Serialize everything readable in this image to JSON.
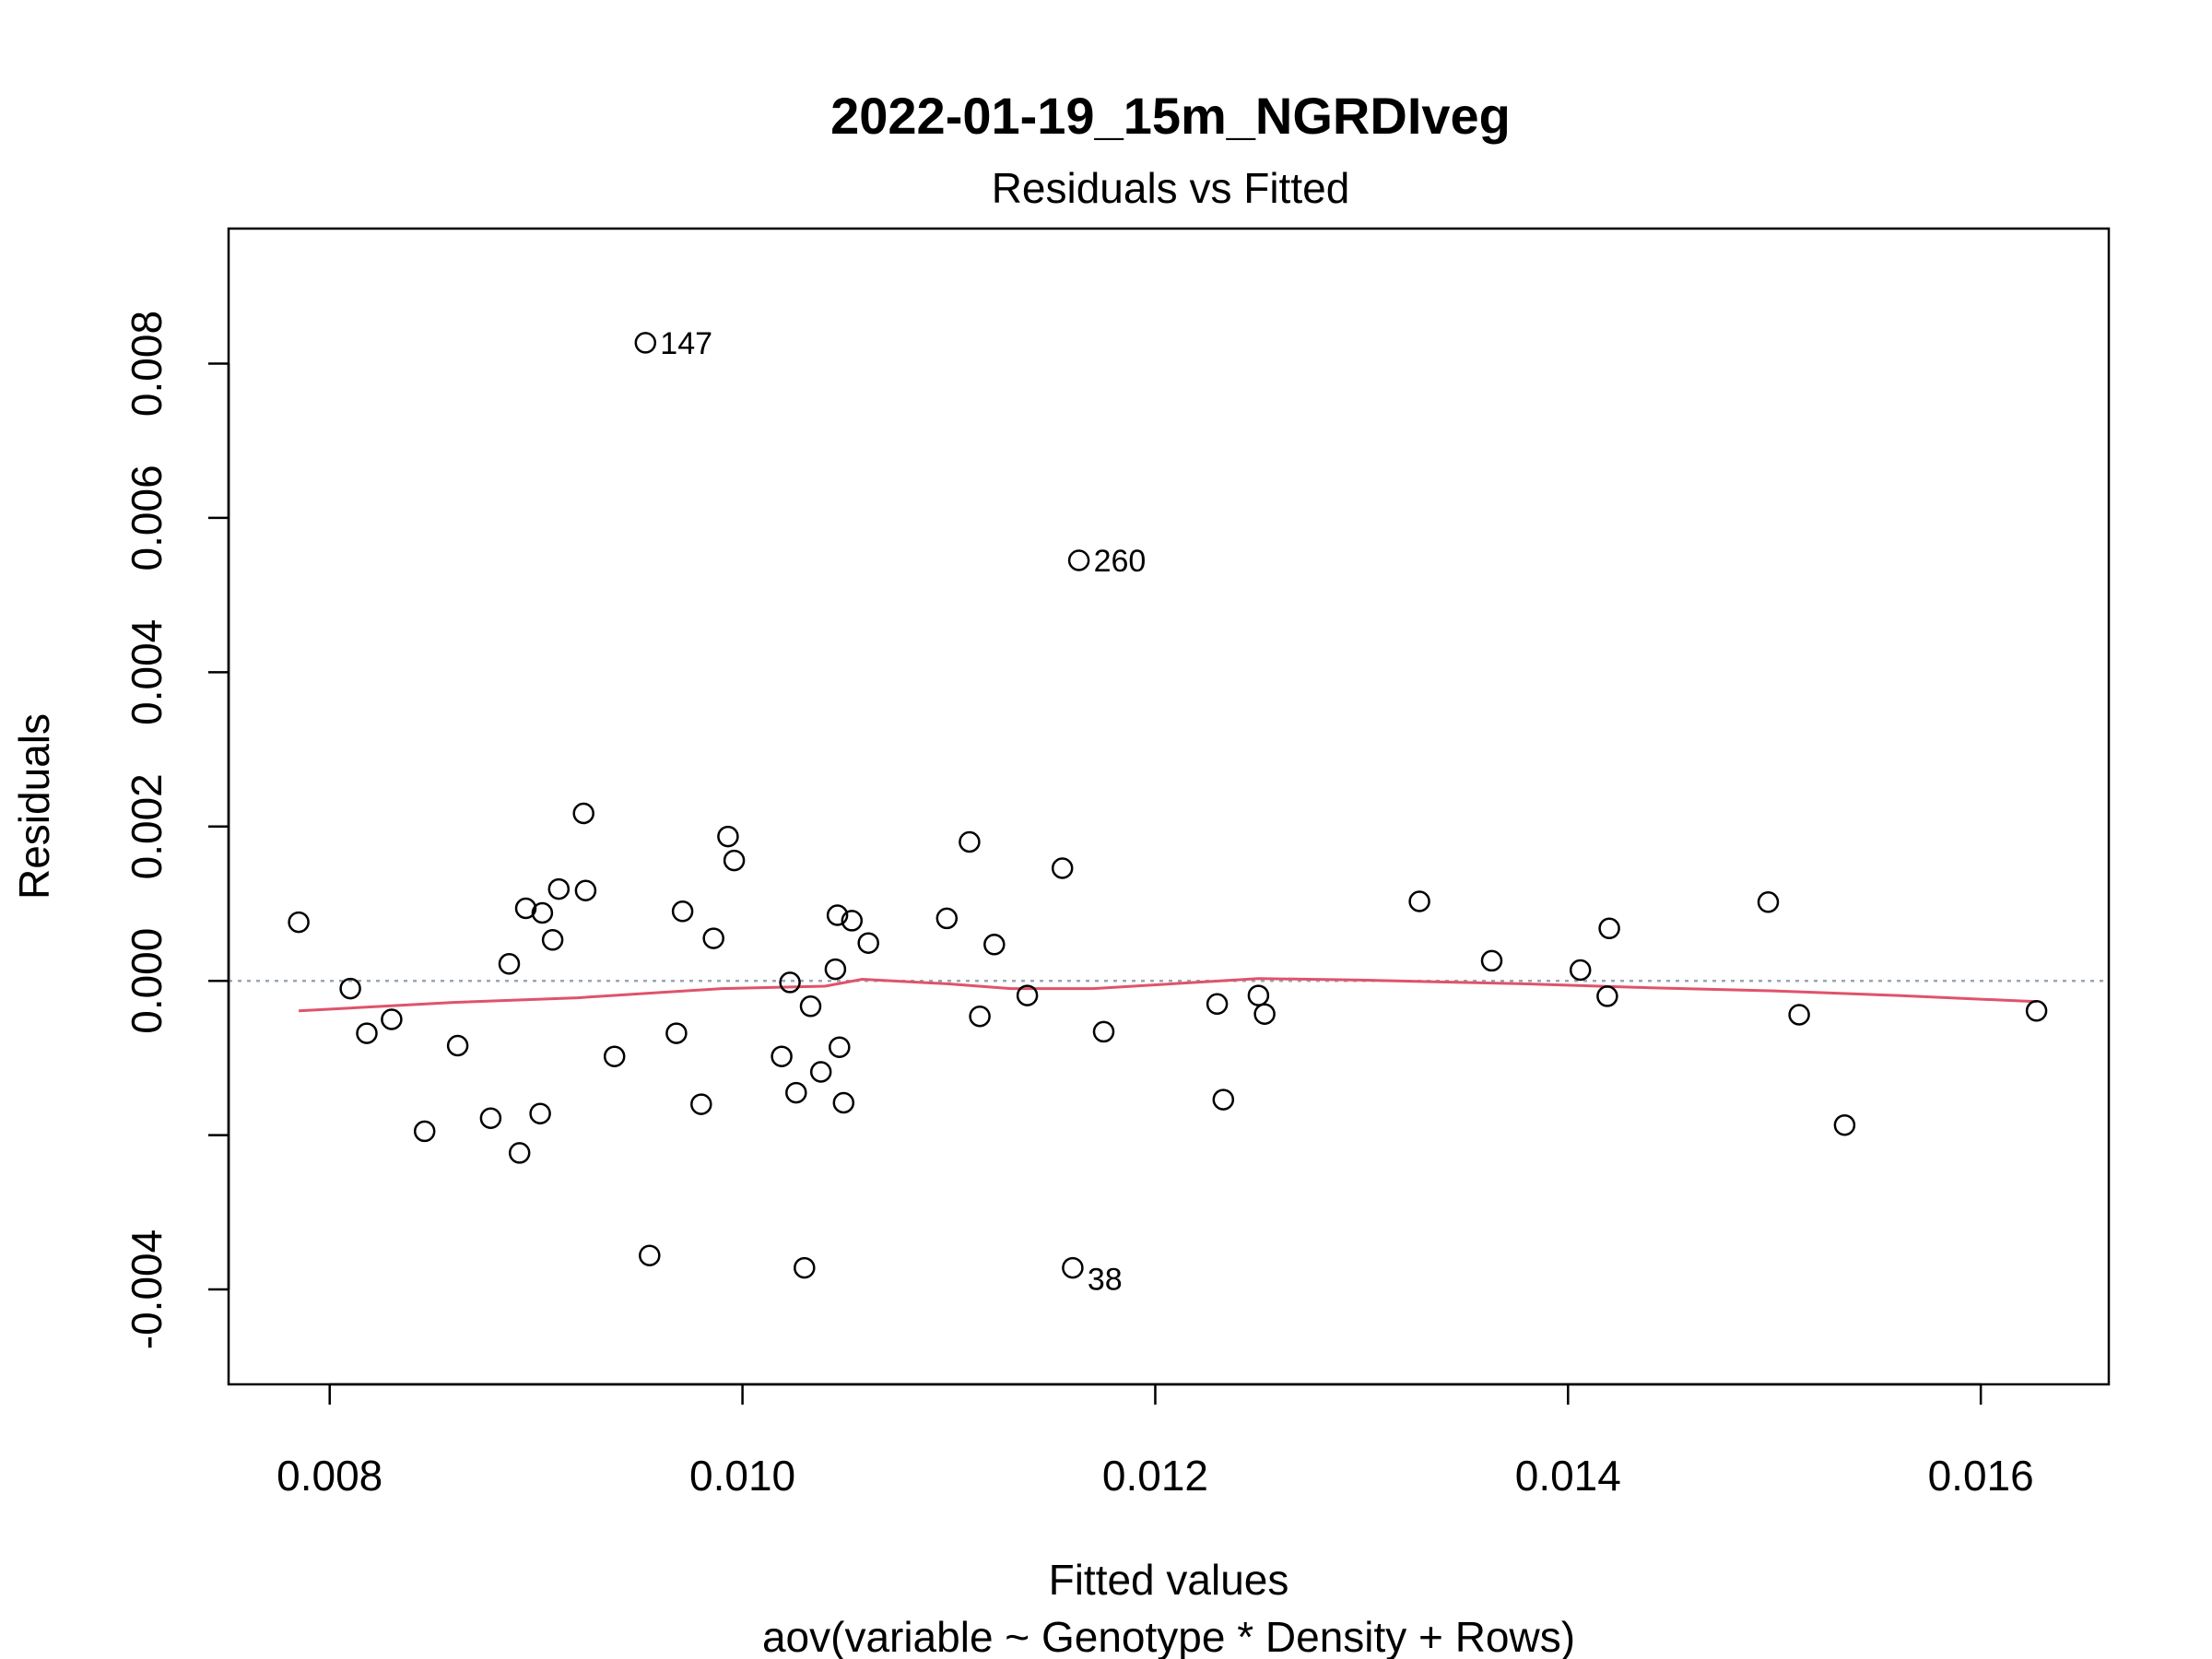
{
  "chart_data": {
    "type": "scatter",
    "title": "2022-01-19_15m_NGRDIveg",
    "subtitle": "Residuals vs Fitted",
    "xlabel": "Fitted values",
    "xlabel_sub": "aov(variable ~ Genotype * Density + Rows)",
    "ylabel": "Residuals",
    "xlim": [
      0.00751,
      0.01662
    ],
    "ylim": [
      -0.00523,
      0.00975
    ],
    "x_ticks": [
      0.008,
      0.01,
      0.012,
      0.014,
      0.016
    ],
    "x_tick_labels": [
      "0.008",
      "0.010",
      "0.012",
      "0.014",
      "0.016"
    ],
    "y_ticks": [
      -0.004,
      -0.002,
      0.0,
      0.002,
      0.004,
      0.006,
      0.008
    ],
    "y_tick_labels": [
      "-0.004",
      "",
      "0.000",
      "0.002",
      "0.004",
      "0.006",
      "0.008"
    ],
    "grid": false,
    "reference_line": {
      "y": 0.0,
      "style": "dotted",
      "color": "#9aa5b5"
    },
    "smooth_color": "#df536b",
    "point_color": "#000000",
    "points": [
      {
        "x": 0.00785,
        "y": 0.00076
      },
      {
        "x": 0.0081,
        "y": -0.0001
      },
      {
        "x": 0.00818,
        "y": -0.00068
      },
      {
        "x": 0.0083,
        "y": -0.0005
      },
      {
        "x": 0.00846,
        "y": -0.00195
      },
      {
        "x": 0.00862,
        "y": -0.00084
      },
      {
        "x": 0.00878,
        "y": -0.00178
      },
      {
        "x": 0.00887,
        "y": 0.00022
      },
      {
        "x": 0.00892,
        "y": -0.00223
      },
      {
        "x": 0.00895,
        "y": 0.00094
      },
      {
        "x": 0.00902,
        "y": -0.00172
      },
      {
        "x": 0.00903,
        "y": 0.00088
      },
      {
        "x": 0.00908,
        "y": 0.00053
      },
      {
        "x": 0.00911,
        "y": 0.00119
      },
      {
        "x": 0.00923,
        "y": 0.00217
      },
      {
        "x": 0.00924,
        "y": 0.00117
      },
      {
        "x": 0.00938,
        "y": -0.00098
      },
      {
        "x": 0.00953,
        "y": 0.00827,
        "label": "147"
      },
      {
        "x": 0.00955,
        "y": -0.00356
      },
      {
        "x": 0.00968,
        "y": -0.00068
      },
      {
        "x": 0.00971,
        "y": 0.0009
      },
      {
        "x": 0.0098,
        "y": -0.0016
      },
      {
        "x": 0.00986,
        "y": 0.00055
      },
      {
        "x": 0.00993,
        "y": 0.00187
      },
      {
        "x": 0.00996,
        "y": 0.00156
      },
      {
        "x": 0.01019,
        "y": -0.00098
      },
      {
        "x": 0.01023,
        "y": -2e-05
      },
      {
        "x": 0.01026,
        "y": -0.00145
      },
      {
        "x": 0.0103,
        "y": -0.00372
      },
      {
        "x": 0.01033,
        "y": -0.00033
      },
      {
        "x": 0.01038,
        "y": -0.00118
      },
      {
        "x": 0.01045,
        "y": 0.00015
      },
      {
        "x": 0.01046,
        "y": 0.00085
      },
      {
        "x": 0.01047,
        "y": -0.00086
      },
      {
        "x": 0.01049,
        "y": -0.00158
      },
      {
        "x": 0.01053,
        "y": 0.00078
      },
      {
        "x": 0.01061,
        "y": 0.00049
      },
      {
        "x": 0.01099,
        "y": 0.00081
      },
      {
        "x": 0.0111,
        "y": 0.0018
      },
      {
        "x": 0.01115,
        "y": -0.00046
      },
      {
        "x": 0.01122,
        "y": 0.00047
      },
      {
        "x": 0.01138,
        "y": -0.00019
      },
      {
        "x": 0.01155,
        "y": 0.00146
      },
      {
        "x": 0.0116,
        "y": -0.00372,
        "label": "38"
      },
      {
        "x": 0.01163,
        "y": 0.00545,
        "label": "260"
      },
      {
        "x": 0.01175,
        "y": -0.00066
      },
      {
        "x": 0.0123,
        "y": -0.0003
      },
      {
        "x": 0.01233,
        "y": -0.00154
      },
      {
        "x": 0.0125,
        "y": -0.00019
      },
      {
        "x": 0.01253,
        "y": -0.00043
      },
      {
        "x": 0.01328,
        "y": 0.00103
      },
      {
        "x": 0.01363,
        "y": 0.00026
      },
      {
        "x": 0.01406,
        "y": 0.00014
      },
      {
        "x": 0.01419,
        "y": -0.0002
      },
      {
        "x": 0.0142,
        "y": 0.00068
      },
      {
        "x": 0.01497,
        "y": 0.00102
      },
      {
        "x": 0.01512,
        "y": -0.00044
      },
      {
        "x": 0.01534,
        "y": -0.00187
      },
      {
        "x": 0.01627,
        "y": -0.00039
      }
    ],
    "smooth": [
      {
        "x": 0.00785,
        "y": -0.00039
      },
      {
        "x": 0.0086,
        "y": -0.00028
      },
      {
        "x": 0.0092,
        "y": -0.00022
      },
      {
        "x": 0.0099,
        "y": -0.0001
      },
      {
        "x": 0.0104,
        "y": -7e-05
      },
      {
        "x": 0.01058,
        "y": 2e-05
      },
      {
        "x": 0.011,
        "y": -4e-05
      },
      {
        "x": 0.0113,
        "y": -0.0001
      },
      {
        "x": 0.0117,
        "y": -0.0001
      },
      {
        "x": 0.0125,
        "y": 3e-05
      },
      {
        "x": 0.013,
        "y": 1e-05
      },
      {
        "x": 0.0138,
        "y": -4e-05
      },
      {
        "x": 0.0144,
        "y": -9e-05
      },
      {
        "x": 0.015,
        "y": -0.00013
      },
      {
        "x": 0.0156,
        "y": -0.00019
      },
      {
        "x": 0.01627,
        "y": -0.00027
      }
    ]
  }
}
